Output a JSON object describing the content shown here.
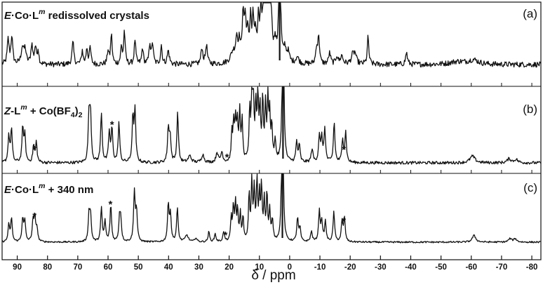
{
  "chart_data": {
    "type": "line",
    "xlabel": "δ / ppm",
    "xlim": [
      95,
      -83
    ],
    "x_reversed": true,
    "x_ticks": [
      90,
      80,
      70,
      60,
      50,
      40,
      30,
      20,
      10,
      0,
      -10,
      -20,
      -30,
      -40,
      -50,
      -60,
      -70,
      -80
    ],
    "x_tick_labels": [
      "90",
      "80",
      "70",
      "60",
      "50",
      "40",
      "30",
      "20",
      "10",
      "0",
      "-10",
      "-20",
      "-30",
      "-40",
      "-50",
      "-60",
      "-70",
      "-80"
    ],
    "panels": [
      {
        "tag": "(a)",
        "title": {
          "prefix": "E",
          "middle": "·Co·L",
          "sup": "m",
          "suffix": " redissolved crystals"
        },
        "noise": 0.05,
        "solvent_peak": {
          "x": 3.3,
          "height": 1.0
        },
        "peaks": [
          [
            93,
            0.45,
            0.35
          ],
          [
            91.8,
            0.5,
            0.35
          ],
          [
            88.3,
            0.3,
            0.5
          ],
          [
            87.4,
            0.25,
            0.4
          ],
          [
            85.2,
            0.35,
            0.35
          ],
          [
            84,
            0.3,
            0.35
          ],
          [
            83.1,
            0.25,
            0.3
          ],
          [
            71.6,
            0.4,
            0.35
          ],
          [
            68.5,
            0.25,
            0.3
          ],
          [
            67,
            0.3,
            0.3
          ],
          [
            65.9,
            0.3,
            0.3
          ],
          [
            60,
            0.25,
            0.3
          ],
          [
            58.9,
            0.55,
            0.3
          ],
          [
            55.6,
            0.3,
            0.3
          ],
          [
            54.6,
            0.6,
            0.3
          ],
          [
            51.1,
            0.45,
            0.3
          ],
          [
            48.6,
            0.3,
            0.3
          ],
          [
            46.2,
            0.38,
            0.3
          ],
          [
            45.3,
            0.38,
            0.3
          ],
          [
            42.4,
            0.35,
            0.3
          ],
          [
            40.1,
            0.25,
            0.4
          ],
          [
            29,
            0.3,
            0.35
          ],
          [
            27.5,
            0.35,
            0.35
          ],
          [
            18.7,
            0.2,
            1.0
          ],
          [
            17.5,
            0.4,
            0.4
          ],
          [
            16.6,
            0.35,
            0.4
          ],
          [
            15.4,
            0.9,
            0.3
          ],
          [
            14.7,
            0.7,
            0.3
          ],
          [
            13.9,
            0.55,
            0.4
          ],
          [
            12.9,
            0.75,
            0.3
          ],
          [
            12.1,
            0.7,
            0.3
          ],
          [
            11.3,
            0.5,
            0.4
          ],
          [
            10.3,
            0.7,
            0.3
          ],
          [
            9.5,
            0.8,
            0.3
          ],
          [
            8.5,
            1.4,
            0.35
          ],
          [
            7.8,
            1.8,
            0.4
          ],
          [
            7.1,
            1.5,
            0.35
          ],
          [
            6.2,
            0.9,
            0.4
          ],
          [
            4.8,
            0.3,
            0.5
          ],
          [
            1.6,
            0.25,
            0.5
          ],
          [
            0.5,
            0.18,
            0.5
          ],
          [
            -2.5,
            0.12,
            0.6
          ],
          [
            -8.9,
            0.3,
            0.35
          ],
          [
            -9.6,
            0.5,
            0.3
          ],
          [
            -13.2,
            0.2,
            0.4
          ],
          [
            -15.6,
            0.15,
            0.4
          ],
          [
            -17.2,
            0.15,
            0.5
          ],
          [
            -20.8,
            0.15,
            0.6
          ],
          [
            -21.6,
            0.17,
            0.5
          ],
          [
            -25.9,
            0.5,
            0.3
          ],
          [
            -38.6,
            0.22,
            0.35
          ],
          [
            -55.5,
            0.05,
            3.0
          ],
          [
            -60.7,
            0.08,
            2.0
          ]
        ],
        "stars": []
      },
      {
        "tag": "(b)",
        "title": {
          "prefix": "Z",
          "middle": "-L",
          "sup": "m",
          "suffix": " + Co(BF",
          "sub": "4",
          "suffix2": ")",
          "sub2": "2"
        },
        "noise": 0.022,
        "solvent_peak": {
          "x": 2.2,
          "height": 0.98
        },
        "peaks": [
          [
            92.8,
            0.4,
            0.3
          ],
          [
            91.9,
            0.5,
            0.3
          ],
          [
            88.2,
            0.5,
            0.3
          ],
          [
            87.5,
            0.4,
            0.3
          ],
          [
            84.6,
            0.25,
            0.3
          ],
          [
            83.7,
            0.3,
            0.3
          ],
          [
            66.3,
            0.7,
            0.3
          ],
          [
            65.8,
            0.7,
            0.3
          ],
          [
            62.2,
            0.75,
            0.3
          ],
          [
            59.6,
            0.45,
            0.3
          ],
          [
            58.7,
            0.5,
            0.3
          ],
          [
            56.4,
            0.6,
            0.3
          ],
          [
            51.8,
            0.65,
            0.3
          ],
          [
            51.1,
            0.75,
            0.3
          ],
          [
            40.1,
            0.5,
            0.3
          ],
          [
            39.5,
            0.4,
            0.3
          ],
          [
            37,
            0.75,
            0.3
          ],
          [
            33,
            0.1,
            0.6
          ],
          [
            28.7,
            0.12,
            0.5
          ],
          [
            24,
            0.15,
            0.4
          ],
          [
            22.4,
            0.15,
            0.4
          ],
          [
            19.1,
            0.4,
            0.25
          ],
          [
            18.5,
            0.55,
            0.25
          ],
          [
            17.9,
            0.6,
            0.25
          ],
          [
            17.3,
            0.55,
            0.25
          ],
          [
            16.5,
            0.75,
            0.25
          ],
          [
            15.7,
            0.6,
            0.25
          ],
          [
            13.2,
            0.75,
            0.25
          ],
          [
            12.5,
            0.95,
            0.25
          ],
          [
            12,
            0.85,
            0.25
          ],
          [
            11.2,
            0.8,
            0.25
          ],
          [
            10.5,
            0.95,
            0.25
          ],
          [
            9.8,
            0.75,
            0.25
          ],
          [
            8.9,
            0.9,
            0.25
          ],
          [
            8,
            0.8,
            0.25
          ],
          [
            7.2,
            0.95,
            0.25
          ],
          [
            6.6,
            0.65,
            0.25
          ],
          [
            5.9,
            0.5,
            0.25
          ],
          [
            4.8,
            0.3,
            0.3
          ],
          [
            -2.3,
            0.3,
            0.3
          ],
          [
            -3.2,
            0.25,
            0.3
          ],
          [
            -7.4,
            0.2,
            0.35
          ],
          [
            -9.8,
            0.4,
            0.3
          ],
          [
            -10.6,
            0.35,
            0.3
          ],
          [
            -11.6,
            0.5,
            0.3
          ],
          [
            -14.7,
            0.6,
            0.3
          ],
          [
            -17.5,
            0.35,
            0.3
          ],
          [
            -18.5,
            0.45,
            0.3
          ],
          [
            -60.4,
            0.1,
            1.0
          ],
          [
            -72.5,
            0.06,
            0.7
          ],
          [
            -74.8,
            0.05,
            0.7
          ]
        ],
        "stars": [
          {
            "x": 84.3
          },
          {
            "x": 58.7
          },
          {
            "x": 20.7
          },
          {
            "x": -17.9
          }
        ]
      },
      {
        "tag": "(c)",
        "title": {
          "prefix": "E",
          "middle": "·Co·L",
          "sup": "m",
          "suffix": " + 340 nm"
        },
        "noise": 0.012,
        "solvent_peak": {
          "x": 2.4,
          "height": 0.88
        },
        "peaks": [
          [
            92.8,
            0.25,
            0.3
          ],
          [
            91.9,
            0.35,
            0.3
          ],
          [
            88.2,
            0.35,
            0.3
          ],
          [
            87.5,
            0.3,
            0.3
          ],
          [
            84.8,
            0.3,
            0.3
          ],
          [
            84.2,
            0.35,
            0.3
          ],
          [
            83.5,
            0.2,
            0.3
          ],
          [
            66.3,
            0.4,
            0.3
          ],
          [
            65.8,
            0.4,
            0.3
          ],
          [
            62.2,
            0.5,
            0.3
          ],
          [
            61,
            0.3,
            0.3
          ],
          [
            59.1,
            0.55,
            0.3
          ],
          [
            56.2,
            0.35,
            0.3
          ],
          [
            55.8,
            0.3,
            0.3
          ],
          [
            51.3,
            0.75,
            0.3
          ],
          [
            50.6,
            0.45,
            0.3
          ],
          [
            40.1,
            0.55,
            0.3
          ],
          [
            39.4,
            0.4,
            0.3
          ],
          [
            37.1,
            0.5,
            0.3
          ],
          [
            34,
            0.1,
            0.6
          ],
          [
            31,
            0.06,
            0.4
          ],
          [
            26.7,
            0.15,
            0.3
          ],
          [
            24.6,
            0.12,
            0.3
          ],
          [
            21.8,
            0.15,
            0.3
          ],
          [
            19.3,
            0.35,
            0.25
          ],
          [
            18.6,
            0.5,
            0.25
          ],
          [
            17.9,
            0.55,
            0.25
          ],
          [
            17.2,
            0.45,
            0.25
          ],
          [
            16.3,
            0.4,
            0.25
          ],
          [
            15.4,
            0.35,
            0.25
          ],
          [
            13.4,
            0.7,
            0.25
          ],
          [
            12.5,
            0.9,
            0.25
          ],
          [
            11.7,
            0.75,
            0.25
          ],
          [
            10.8,
            0.9,
            0.25
          ],
          [
            10,
            0.65,
            0.25
          ],
          [
            9.3,
            0.8,
            0.25
          ],
          [
            8.4,
            0.6,
            0.25
          ],
          [
            7.5,
            0.7,
            0.25
          ],
          [
            6.6,
            0.45,
            0.25
          ],
          [
            5.7,
            0.3,
            0.3
          ],
          [
            -2.6,
            0.35,
            0.3
          ],
          [
            -3.4,
            0.2,
            0.3
          ],
          [
            -7.2,
            0.15,
            0.35
          ],
          [
            -9.8,
            0.45,
            0.3
          ],
          [
            -10.6,
            0.3,
            0.3
          ],
          [
            -11.8,
            0.3,
            0.3
          ],
          [
            -14.6,
            0.45,
            0.3
          ],
          [
            -17.3,
            0.3,
            0.3
          ],
          [
            -18.1,
            0.35,
            0.3
          ],
          [
            -60.9,
            0.1,
            0.7
          ],
          [
            -72.8,
            0.05,
            0.6
          ],
          [
            -74.5,
            0.05,
            0.6
          ]
        ],
        "stars": [
          {
            "x": 84.3
          },
          {
            "x": 59.2
          },
          {
            "x": 21.2
          },
          {
            "x": -17.9
          }
        ]
      }
    ]
  },
  "colors": {
    "trace": "#111111",
    "axis": "#111111",
    "background": "#ffffff"
  }
}
